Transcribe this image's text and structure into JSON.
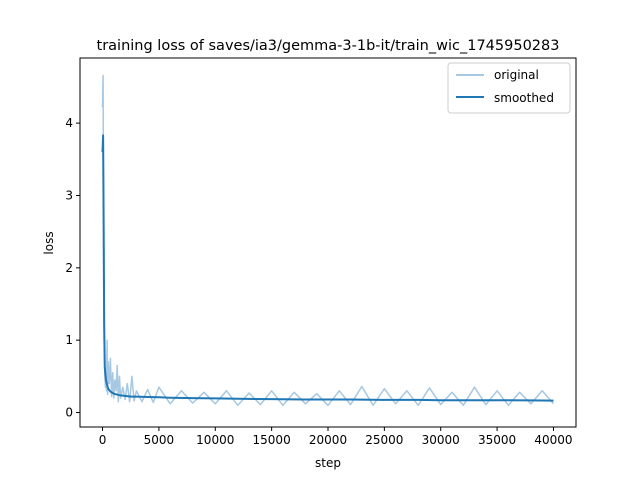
{
  "chart_data": {
    "type": "line",
    "title": "training loss of saves/ia3/gemma-3-1b-it/train_wic_1745950283",
    "xlabel": "step",
    "ylabel": "loss",
    "xlim": [
      -2000,
      42000
    ],
    "ylim": [
      -0.2,
      4.9
    ],
    "xticks": [
      0,
      5000,
      10000,
      15000,
      20000,
      25000,
      30000,
      35000,
      40000
    ],
    "xtick_labels": [
      "0",
      "5000",
      "10000",
      "15000",
      "20000",
      "25000",
      "30000",
      "35000",
      "40000"
    ],
    "yticks": [
      0,
      1,
      2,
      3,
      4
    ],
    "ytick_labels": [
      "0",
      "1",
      "2",
      "3",
      "4"
    ],
    "legend_position": "top-right",
    "series": [
      {
        "name": "original",
        "color": "#a6c8e3",
        "x": [
          0,
          50,
          100,
          150,
          200,
          250,
          300,
          350,
          400,
          450,
          500,
          600,
          700,
          800,
          900,
          1000,
          1100,
          1200,
          1300,
          1400,
          1500,
          1600,
          1800,
          2000,
          2200,
          2400,
          2600,
          2800,
          3000,
          3500,
          4000,
          4500,
          5000,
          6000,
          7000,
          8000,
          9000,
          10000,
          11000,
          12000,
          13000,
          14000,
          15000,
          16000,
          17000,
          18000,
          19000,
          20000,
          21000,
          22000,
          23000,
          24000,
          25000,
          26000,
          27000,
          28000,
          29000,
          30000,
          31000,
          32000,
          33000,
          34000,
          35000,
          36000,
          37000,
          38000,
          39000,
          40000
        ],
        "y": [
          4.22,
          4.66,
          1.5,
          0.95,
          0.55,
          0.35,
          0.62,
          0.3,
          1.0,
          0.25,
          0.7,
          0.4,
          0.75,
          0.22,
          0.55,
          0.2,
          0.45,
          0.3,
          0.65,
          0.15,
          0.5,
          0.2,
          0.35,
          0.18,
          0.4,
          0.15,
          0.5,
          0.16,
          0.3,
          0.15,
          0.32,
          0.14,
          0.35,
          0.12,
          0.3,
          0.13,
          0.28,
          0.12,
          0.3,
          0.1,
          0.27,
          0.11,
          0.3,
          0.1,
          0.28,
          0.12,
          0.26,
          0.1,
          0.3,
          0.11,
          0.36,
          0.1,
          0.33,
          0.12,
          0.3,
          0.1,
          0.34,
          0.11,
          0.28,
          0.1,
          0.35,
          0.11,
          0.3,
          0.1,
          0.28,
          0.12,
          0.3,
          0.12
        ]
      },
      {
        "name": "smoothed",
        "color": "#1f77b4",
        "x": [
          0,
          50,
          100,
          150,
          200,
          300,
          400,
          500,
          700,
          1000,
          1500,
          2000,
          2500,
          3000,
          4000,
          5000,
          6000,
          8000,
          10000,
          12000,
          15000,
          18000,
          20000,
          22000,
          25000,
          28000,
          30000,
          32000,
          35000,
          38000,
          40000
        ],
        "y": [
          3.6,
          3.83,
          2.5,
          1.2,
          0.62,
          0.45,
          0.38,
          0.33,
          0.29,
          0.26,
          0.24,
          0.23,
          0.22,
          0.22,
          0.215,
          0.21,
          0.205,
          0.2,
          0.195,
          0.19,
          0.185,
          0.18,
          0.18,
          0.18,
          0.175,
          0.175,
          0.17,
          0.17,
          0.17,
          0.168,
          0.165
        ]
      }
    ]
  }
}
